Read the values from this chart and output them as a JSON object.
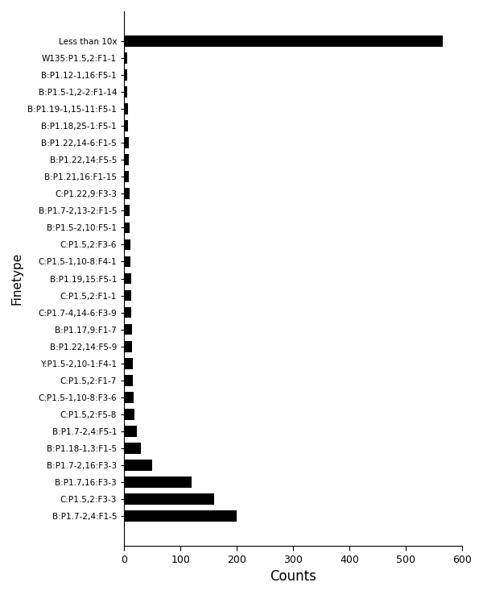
{
  "categories": [
    "B:P1.7-2,4:F1-5",
    "C:P1.5,2:F3-3",
    "B:P1.7,16:F3-3",
    "B:P1.7-2,16:F3-3",
    "B:P1.18-1,3:F1-5",
    "B:P1.7-2,4:F5-1",
    "C:P1.5,2:F5-8",
    "C:P1.5-1,10-8:F3-6",
    "C:P1.5,2:F1-7",
    "Y:P1.5-2,10-1:F4-1",
    "B:P1.22,14:F5-9",
    "B:P1.17,9:F1-7",
    "C:P1.7-4,14-6:F3-9",
    "C:P1.5,2:F1-1",
    "B:P1.19,15:F5-1",
    "C:P1.5-1,10-8:F4-1",
    "C:P1.5,2:F3-6",
    "B:P1.5-2,10:F5-1",
    "B:P1.7-2,13-2:F1-5",
    "C:P1.22,9:F3-3",
    "B:P1.21,16:F1-15",
    "B:P1.22,14:F5-5",
    "B:P1.22,14-6:F1-5",
    "B:P1.18,25-1:F5-1",
    "B:P1.19-1,15-11:F5-1",
    "B:P1.5-1,2-2:F1-14",
    "B:P1.12-1,16:F5-1",
    "W135:P1.5,2:F1-1",
    "Less than 10x"
  ],
  "values": [
    199,
    160,
    120,
    50,
    30,
    22,
    18,
    17,
    16,
    15,
    14,
    14,
    13,
    12,
    12,
    11,
    11,
    10,
    10,
    9,
    8,
    8,
    8,
    7,
    7,
    6,
    6,
    5,
    565
  ],
  "bar_color": "#000000",
  "xlabel": "Counts",
  "ylabel": "Finetype",
  "xlim": [
    0,
    600
  ],
  "xticks": [
    0,
    100,
    200,
    300,
    400,
    500,
    600
  ],
  "figsize": [
    6.0,
    7.38
  ],
  "dpi": 100,
  "label_fontsize": 7.5,
  "axis_label_fontsize": 11,
  "xlabel_fontsize": 12,
  "bar_height": 0.65
}
